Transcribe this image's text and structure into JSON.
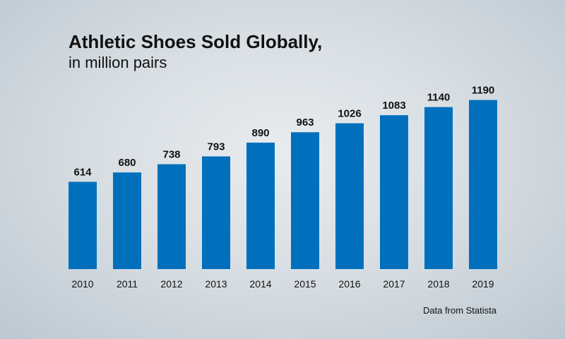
{
  "chart_data": {
    "type": "bar",
    "title": "Athletic Shoes Sold Globally,",
    "subtitle": "in million pairs",
    "categories": [
      "2010",
      "2011",
      "2012",
      "2013",
      "2014",
      "2015",
      "2016",
      "2017",
      "2018",
      "2019"
    ],
    "values": [
      614,
      680,
      738,
      793,
      890,
      963,
      1026,
      1083,
      1140,
      1190
    ],
    "source": "Data from Statista",
    "bar_color": "#0070bd",
    "data_labels": true,
    "grid": false,
    "y_axis_visible": false
  }
}
